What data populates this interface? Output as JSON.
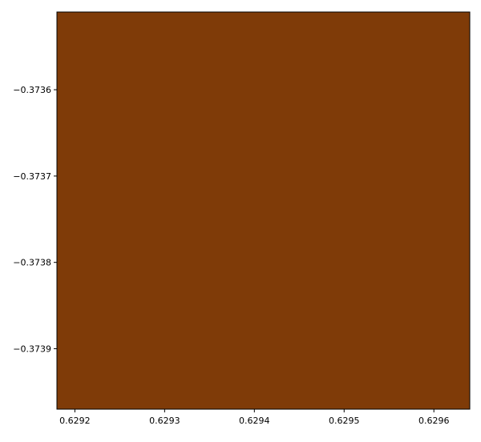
{
  "chart_data": {
    "type": "heatmap",
    "title": "",
    "xlabel": "",
    "ylabel": "",
    "xlim": [
      0.62918,
      0.62964
    ],
    "ylim": [
      -0.37397,
      -0.37351
    ],
    "x_ticks": [
      {
        "value": 0.6292,
        "label": "0.6292"
      },
      {
        "value": 0.6293,
        "label": "0.6293"
      },
      {
        "value": 0.6294,
        "label": "0.6294"
      },
      {
        "value": 0.6295,
        "label": "0.6295"
      },
      {
        "value": 0.6296,
        "label": "0.6296"
      }
    ],
    "y_ticks": [
      {
        "value": -0.3736,
        "label": "−0.3736"
      },
      {
        "value": -0.3737,
        "label": "−0.3737"
      },
      {
        "value": -0.3738,
        "label": "−0.3738"
      },
      {
        "value": -0.3739,
        "label": "−0.3739"
      }
    ],
    "grid": false,
    "legend": "none",
    "content": "Mandelbrot set zoom (escape-time coloring)",
    "colormap": [
      "#7f3b08",
      "#b35806",
      "#e08214",
      "#fdb863",
      "#fee0b6",
      "#f7f7f7",
      "#d8daeb",
      "#b2abd2",
      "#8073ac",
      "#542788",
      "#2d004b"
    ],
    "set_color": "#2d004b",
    "max_iterations": 300
  }
}
